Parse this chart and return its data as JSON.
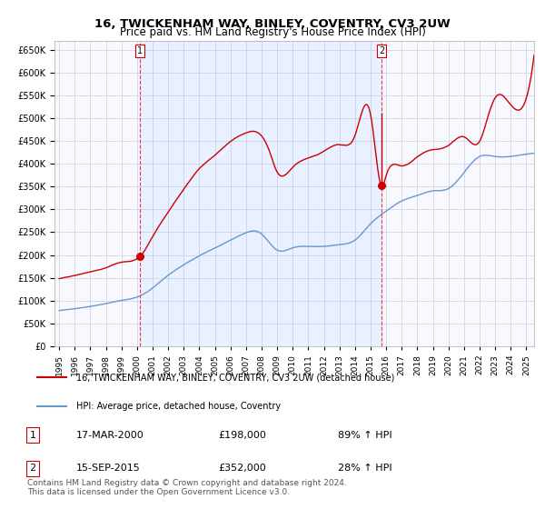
{
  "title": "16, TWICKENHAM WAY, BINLEY, COVENTRY, CV3 2UW",
  "subtitle": "Price paid vs. HM Land Registry's House Price Index (HPI)",
  "legend_line1": "16, TWICKENHAM WAY, BINLEY, COVENTRY, CV3 2UW (detached house)",
  "legend_line2": "HPI: Average price, detached house, Coventry",
  "transaction1_label": "1",
  "transaction1_date": "17-MAR-2000",
  "transaction1_price": 198000,
  "transaction1_pct": "89% ↑ HPI",
  "transaction2_label": "2",
  "transaction2_date": "15-SEP-2015",
  "transaction2_price": 352000,
  "transaction2_pct": "28% ↑ HPI",
  "footer": "Contains HM Land Registry data © Crown copyright and database right 2024.\nThis data is licensed under the Open Government Licence v3.0.",
  "hpi_color": "#6699cc",
  "property_color": "#cc0000",
  "background_color": "#ddeeff",
  "grid_color": "#ccccdd",
  "axbg_color": "#f8f8ff",
  "vline_color": "#dd4444",
  "ylim": [
    0,
    670000
  ],
  "yticks": [
    0,
    50000,
    100000,
    150000,
    200000,
    250000,
    300000,
    350000,
    400000,
    450000,
    500000,
    550000,
    600000,
    650000
  ],
  "transaction1_x": 2000.21,
  "transaction2_x": 2015.71,
  "between_shade_alpha": 0.18
}
